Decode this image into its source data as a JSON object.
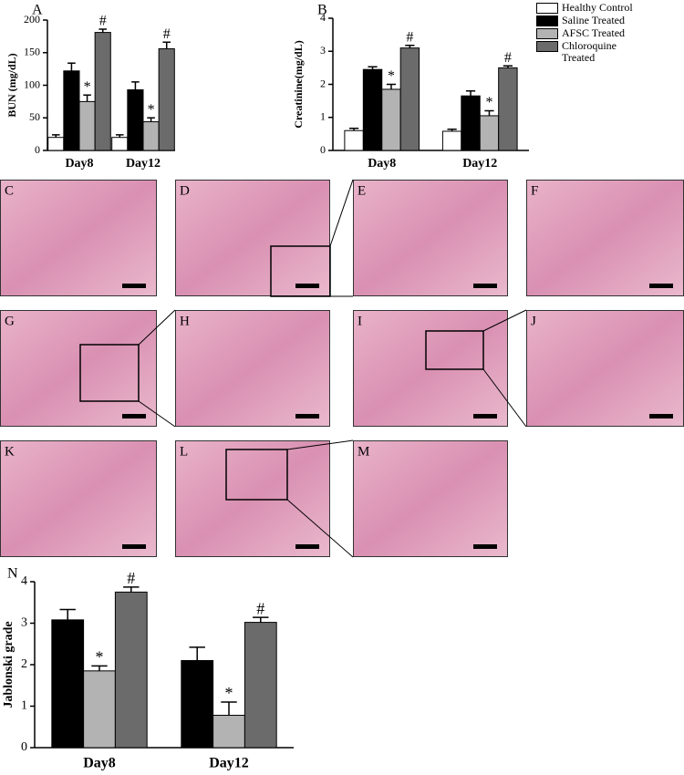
{
  "chart_data": [
    {
      "type": "bar",
      "panel": "A",
      "ylabel": "BUN (mg/dL)",
      "categories": [
        "Day8",
        "Day12"
      ],
      "ylim": [
        0,
        200
      ],
      "yticks": [
        0,
        50,
        100,
        150,
        200
      ],
      "series": [
        {
          "name": "Healthy Control",
          "color": "#ffffff",
          "values": [
            20,
            20
          ],
          "errors": [
            4,
            4
          ]
        },
        {
          "name": "Saline Treated",
          "color": "#000000",
          "values": [
            122,
            93
          ],
          "errors": [
            12,
            12
          ]
        },
        {
          "name": "AFSC Treated",
          "color": "#b3b3b3",
          "values": [
            75,
            44
          ],
          "errors": [
            10,
            6
          ],
          "significance": "*"
        },
        {
          "name": "Chloroquine Treated",
          "color": "#6b6b6b",
          "values": [
            181,
            156
          ],
          "errors": [
            5,
            10
          ],
          "significance": "#"
        }
      ]
    },
    {
      "type": "bar",
      "panel": "B",
      "ylabel": "Creatinine(mg/dL)",
      "categories": [
        "Day8",
        "Day12"
      ],
      "ylim": [
        0,
        4
      ],
      "yticks": [
        0,
        1,
        2,
        3,
        4
      ],
      "series": [
        {
          "color": "#ffffff",
          "values": [
            0.6,
            0.58
          ],
          "errors": [
            0.07,
            0.06
          ]
        },
        {
          "color": "#000000",
          "values": [
            2.45,
            1.65
          ],
          "errors": [
            0.08,
            0.15
          ]
        },
        {
          "color": "#b3b3b3",
          "values": [
            1.85,
            1.05
          ],
          "errors": [
            0.15,
            0.15
          ],
          "significance": "*"
        },
        {
          "color": "#6b6b6b",
          "values": [
            3.1,
            2.5
          ],
          "errors": [
            0.08,
            0.06
          ],
          "significance": "#"
        }
      ]
    },
    {
      "type": "bar",
      "panel": "N",
      "ylabel": "Jablonski grade",
      "categories": [
        "Day8",
        "Day12"
      ],
      "ylim": [
        0,
        4
      ],
      "yticks": [
        0,
        1,
        2,
        3,
        4
      ],
      "series": [
        {
          "color": "#000000",
          "values": [
            3.08,
            2.1
          ],
          "errors": [
            0.25,
            0.32
          ]
        },
        {
          "color": "#b3b3b3",
          "values": [
            1.85,
            0.78
          ],
          "errors": [
            0.12,
            0.32
          ],
          "significance": "*"
        },
        {
          "color": "#6b6b6b",
          "values": [
            3.75,
            3.02
          ],
          "errors": [
            0.12,
            0.12
          ],
          "significance": "#"
        }
      ]
    }
  ],
  "figure": {
    "images": [
      {
        "label": "C"
      },
      {
        "label": "D"
      },
      {
        "label": "E"
      },
      {
        "label": "F"
      },
      {
        "label": "G"
      },
      {
        "label": "H"
      },
      {
        "label": "I"
      },
      {
        "label": "J"
      },
      {
        "label": "K"
      },
      {
        "label": "L"
      },
      {
        "label": "M"
      }
    ]
  }
}
